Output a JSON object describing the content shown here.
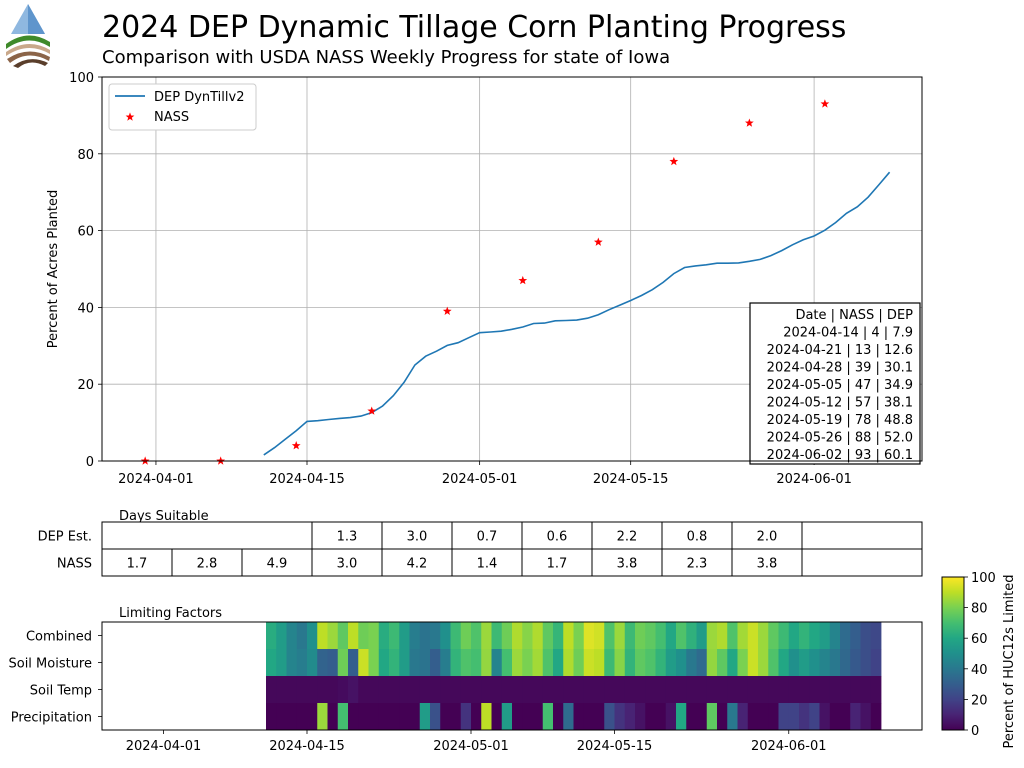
{
  "header": {
    "title": "2024 DEP Dynamic Tillage Corn Planting Progress",
    "subtitle": "Comparison with USDA NASS Weekly Progress for state of Iowa"
  },
  "chart_data": [
    {
      "type": "line",
      "title": "",
      "ylabel": "Percent of Acres Planted",
      "xlim": [
        "2024-03-27",
        "2024-06-11"
      ],
      "ylim": [
        0,
        100
      ],
      "yticks": [
        0,
        20,
        40,
        60,
        80,
        100
      ],
      "xticks": [
        "2024-04-01",
        "2024-04-15",
        "2024-05-01",
        "2024-05-15",
        "2024-06-01"
      ],
      "grid": true,
      "legend": "top-left",
      "series": [
        {
          "name": "DEP DynTillv2",
          "color": "#1f77b4",
          "style": "line",
          "x": [
            "2024-04-11",
            "2024-04-12",
            "2024-04-13",
            "2024-04-14",
            "2024-04-15",
            "2024-04-16",
            "2024-04-17",
            "2024-04-18",
            "2024-04-19",
            "2024-04-20",
            "2024-04-21",
            "2024-04-22",
            "2024-04-23",
            "2024-04-24",
            "2024-04-25",
            "2024-04-26",
            "2024-04-27",
            "2024-04-28",
            "2024-04-29",
            "2024-04-30",
            "2024-05-01",
            "2024-05-02",
            "2024-05-03",
            "2024-05-04",
            "2024-05-05",
            "2024-05-06",
            "2024-05-07",
            "2024-05-08",
            "2024-05-09",
            "2024-05-10",
            "2024-05-11",
            "2024-05-12",
            "2024-05-13",
            "2024-05-14",
            "2024-05-15",
            "2024-05-16",
            "2024-05-17",
            "2024-05-18",
            "2024-05-19",
            "2024-05-20",
            "2024-05-21",
            "2024-05-22",
            "2024-05-23",
            "2024-05-24",
            "2024-05-25",
            "2024-05-26",
            "2024-05-27",
            "2024-05-28",
            "2024-05-29",
            "2024-05-30",
            "2024-05-31",
            "2024-06-01",
            "2024-06-02",
            "2024-06-03",
            "2024-06-04",
            "2024-06-05",
            "2024-06-06",
            "2024-06-07",
            "2024-06-08"
          ],
          "y": [
            1.6,
            3.5,
            5.7,
            7.9,
            10.3,
            10.5,
            10.8,
            11.1,
            11.3,
            11.7,
            12.6,
            14.3,
            17.0,
            20.5,
            25.0,
            27.3,
            28.6,
            30.1,
            30.8,
            32.1,
            33.4,
            33.6,
            33.8,
            34.3,
            34.9,
            35.8,
            35.9,
            36.5,
            36.6,
            36.7,
            37.2,
            38.1,
            39.4,
            40.6,
            41.8,
            43.1,
            44.6,
            46.5,
            48.8,
            50.4,
            50.8,
            51.1,
            51.5,
            51.5,
            51.6,
            52.0,
            52.5,
            53.5,
            54.8,
            56.3,
            57.6,
            58.6,
            60.1,
            62.1,
            64.5,
            66.2,
            68.7,
            71.9,
            75.2
          ]
        },
        {
          "name": "NASS",
          "color": "#ff0000",
          "style": "star",
          "x": [
            "2024-03-31",
            "2024-04-07",
            "2024-04-14",
            "2024-04-21",
            "2024-04-28",
            "2024-05-05",
            "2024-05-12",
            "2024-05-19",
            "2024-05-26",
            "2024-06-02"
          ],
          "y": [
            0,
            0,
            4,
            13,
            39,
            47,
            57,
            78,
            88,
            93
          ]
        }
      ],
      "table": {
        "header": "Date       | NASS | DEP",
        "rows": [
          "2024-04-14 | 4 | 7.9",
          "2024-04-21 | 13 | 12.6",
          "2024-04-28 | 39 | 30.1",
          "2024-05-05 | 47 | 34.9",
          "2024-05-12 | 57 | 38.1",
          "2024-05-19 | 78 | 48.8",
          "2024-05-26 | 88 | 52.0",
          "2024-06-02 | 93 | 60.1"
        ]
      }
    },
    {
      "type": "table",
      "title": "Days Suitable",
      "rows": [
        {
          "label": "DEP Est.",
          "cells": [
            {
              "start": "2024-04-14",
              "value": "1.3"
            },
            {
              "start": "2024-04-21",
              "value": "3.0"
            },
            {
              "start": "2024-04-28",
              "value": "0.7"
            },
            {
              "start": "2024-05-05",
              "value": "0.6"
            },
            {
              "start": "2024-05-12",
              "value": "2.2"
            },
            {
              "start": "2024-05-19",
              "value": "0.8"
            },
            {
              "start": "2024-05-26",
              "value": "2.0"
            }
          ]
        },
        {
          "label": "NASS",
          "cells": [
            {
              "start": "2024-03-24",
              "value": "1.7"
            },
            {
              "start": "2024-03-31",
              "value": "2.8"
            },
            {
              "start": "2024-04-07",
              "value": "4.9"
            },
            {
              "start": "2024-04-14",
              "value": "3.0"
            },
            {
              "start": "2024-04-21",
              "value": "4.2"
            },
            {
              "start": "2024-04-28",
              "value": "1.4"
            },
            {
              "start": "2024-05-05",
              "value": "1.7"
            },
            {
              "start": "2024-05-12",
              "value": "3.8"
            },
            {
              "start": "2024-05-19",
              "value": "2.3"
            },
            {
              "start": "2024-05-26",
              "value": "3.8"
            }
          ]
        }
      ]
    },
    {
      "type": "heatmap",
      "title": "Limiting Factors",
      "colormap": "viridis",
      "colorbar_label": "Percent of HUC12s Limited",
      "colorbar_ticks": [
        0,
        20,
        40,
        60,
        80,
        100
      ],
      "vmin": 0,
      "vmax": 100,
      "x_start": "2024-04-11",
      "xticks": [
        "2024-04-01",
        "2024-04-15",
        "2024-05-01",
        "2024-05-15",
        "2024-06-01"
      ],
      "rows": [
        {
          "label": "Combined",
          "values": [
            62,
            55,
            45,
            40,
            50,
            90,
            85,
            75,
            90,
            78,
            80,
            62,
            68,
            55,
            42,
            38,
            40,
            50,
            68,
            78,
            72,
            85,
            68,
            78,
            88,
            82,
            88,
            75,
            66,
            90,
            80,
            95,
            93,
            72,
            85,
            68,
            78,
            75,
            70,
            60,
            72,
            64,
            55,
            85,
            88,
            72,
            86,
            92,
            85,
            75,
            68,
            60,
            65,
            60,
            55,
            45,
            35,
            30,
            24,
            22
          ]
        },
        {
          "label": "Soil Moisture",
          "values": [
            60,
            55,
            45,
            42,
            48,
            32,
            30,
            78,
            30,
            92,
            80,
            60,
            65,
            55,
            40,
            38,
            30,
            42,
            65,
            72,
            70,
            84,
            45,
            70,
            85,
            80,
            86,
            72,
            60,
            88,
            78,
            92,
            90,
            68,
            82,
            65,
            75,
            72,
            65,
            55,
            50,
            40,
            35,
            84,
            75,
            60,
            80,
            92,
            85,
            72,
            60,
            50,
            55,
            50,
            45,
            40,
            34,
            28,
            24,
            20
          ]
        },
        {
          "label": "Soil Temp",
          "values": [
            2,
            2,
            2,
            2,
            2,
            2,
            2,
            3,
            5,
            2,
            2,
            2,
            2,
            2,
            2,
            2,
            2,
            2,
            2,
            2,
            2,
            2,
            2,
            2,
            2,
            2,
            2,
            2,
            2,
            2,
            2,
            2,
            2,
            2,
            2,
            2,
            2,
            2,
            2,
            2,
            2,
            2,
            2,
            2,
            2,
            2,
            2,
            2,
            2,
            2,
            2,
            2,
            2,
            2,
            2,
            2,
            2,
            2,
            2,
            2
          ]
        },
        {
          "label": "Precipitation",
          "values": [
            0,
            0,
            0,
            0,
            0,
            85,
            0,
            70,
            0,
            0,
            0,
            0,
            0,
            0,
            0,
            55,
            25,
            0,
            0,
            15,
            0,
            90,
            0,
            55,
            0,
            0,
            0,
            70,
            0,
            35,
            0,
            0,
            0,
            25,
            15,
            10,
            5,
            0,
            0,
            5,
            60,
            0,
            0,
            75,
            0,
            40,
            10,
            0,
            0,
            0,
            20,
            20,
            15,
            20,
            5,
            0,
            0,
            10,
            5,
            0
          ]
        }
      ]
    }
  ]
}
